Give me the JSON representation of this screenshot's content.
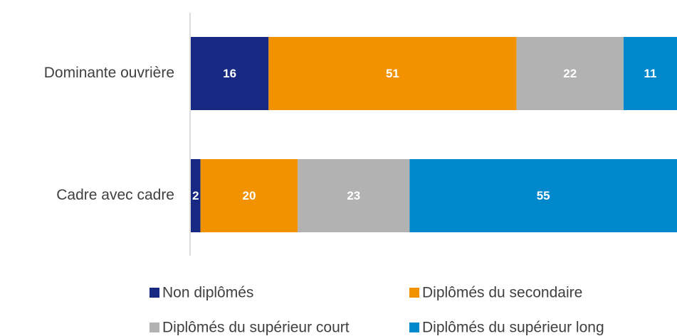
{
  "chart_data": {
    "type": "stacked-bar-horizontal",
    "categories": [
      "Dominante ouvrière",
      "Cadre avec cadre"
    ],
    "series": [
      {
        "name": "Non diplômés",
        "color": "#172983",
        "values": [
          16,
          2
        ]
      },
      {
        "name": "Diplômés du secondaire",
        "color": "#f39200",
        "values": [
          51,
          20
        ]
      },
      {
        "name": "Diplômés du supérieur court",
        "color": "#b2b2b2",
        "values": [
          22,
          23
        ]
      },
      {
        "name": "Diplômés du supérieur long",
        "color": "#0088cc",
        "values": [
          11,
          55
        ]
      }
    ]
  }
}
